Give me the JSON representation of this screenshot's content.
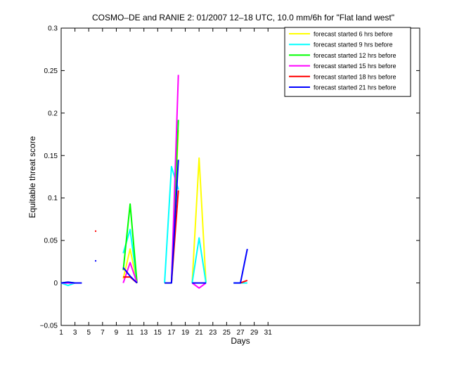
{
  "chart_data": {
    "type": "line",
    "title": "COSMO–DE and RANIE 2: 01/2007 12–18 UTC, 10.0 mm/6h for \"Flat land west\"",
    "xlabel": "Days",
    "ylabel": "Equitable threat score",
    "xlim": [
      1,
      53
    ],
    "ylim": [
      -0.05,
      0.3
    ],
    "xticks": [
      1,
      3,
      5,
      7,
      9,
      11,
      13,
      15,
      17,
      19,
      21,
      23,
      25,
      27,
      29,
      31
    ],
    "yticks": [
      -0.05,
      0,
      0.05,
      0.1,
      0.15,
      0.2,
      0.25,
      0.3
    ],
    "ytick_labels": [
      "−0.05",
      "0",
      "0.05",
      "0.1",
      "0.15",
      "0.2",
      "0.25",
      "0.3"
    ],
    "grid": false,
    "legend_position": "top-right",
    "series": [
      {
        "name": "forecast started 6 hrs before",
        "color": "#ffff00",
        "segments": [
          [
            [
              1,
              0
            ],
            [
              2,
              0
            ],
            [
              3,
              0
            ]
          ],
          [
            [
              10,
              0.005
            ],
            [
              11,
              0.04
            ],
            [
              12,
              0
            ]
          ],
          [
            [
              16,
              0
            ],
            [
              17,
              0
            ],
            [
              18,
              0.18
            ]
          ],
          [
            [
              20,
              0
            ],
            [
              21,
              0.147
            ],
            [
              22,
              0
            ]
          ]
        ]
      },
      {
        "name": "forecast started 9 hrs before",
        "color": "#00ffff",
        "segments": [
          [
            [
              1,
              0
            ],
            [
              2,
              -0.003
            ],
            [
              3,
              0
            ]
          ],
          [
            [
              10,
              0.035
            ],
            [
              11,
              0.063
            ],
            [
              12,
              0
            ]
          ],
          [
            [
              16,
              0
            ],
            [
              17,
              0.137
            ],
            [
              18,
              0.11
            ]
          ],
          [
            [
              20,
              0
            ],
            [
              21,
              0.053
            ],
            [
              22,
              0
            ]
          ],
          [
            [
              26,
              0
            ],
            [
              27,
              0
            ],
            [
              28,
              0
            ]
          ]
        ]
      },
      {
        "name": "forecast started 12 hrs before",
        "color": "#00ff00",
        "segments": [
          [
            [
              1,
              0
            ],
            [
              2,
              0.001
            ],
            [
              3,
              0
            ]
          ],
          [
            [
              10,
              0.015
            ],
            [
              11,
              0.093
            ],
            [
              12,
              0
            ]
          ],
          [
            [
              17,
              0
            ],
            [
              18,
              0.192
            ]
          ]
        ]
      },
      {
        "name": "forecast started 15 hrs before",
        "color": "#ff00ff",
        "segments": [
          [
            [
              1,
              0
            ],
            [
              2,
              0
            ],
            [
              3,
              0
            ]
          ],
          [
            [
              10,
              0
            ],
            [
              11,
              0.024
            ],
            [
              12,
              0
            ]
          ],
          [
            [
              17,
              0
            ],
            [
              18,
              0.245
            ]
          ],
          [
            [
              20,
              0
            ],
            [
              21,
              -0.006
            ],
            [
              22,
              0
            ]
          ]
        ]
      },
      {
        "name": "forecast started 18 hrs before",
        "color": "#ff0000",
        "segments": [
          [
            [
              6,
              0.061
            ]
          ],
          [
            [
              10,
              0.007
            ],
            [
              11,
              0.007
            ],
            [
              12,
              0
            ]
          ],
          [
            [
              17,
              0
            ],
            [
              18,
              0.109
            ]
          ],
          [
            [
              27,
              0
            ],
            [
              28,
              0.003
            ]
          ]
        ]
      },
      {
        "name": "forecast started 21 hrs before",
        "color": "#0000ff",
        "segments": [
          [
            [
              1,
              0
            ],
            [
              2,
              0.001
            ],
            [
              3,
              0
            ],
            [
              4,
              0
            ]
          ],
          [
            [
              6,
              0.026
            ]
          ],
          [
            [
              10,
              0.018
            ],
            [
              11,
              0.008
            ],
            [
              12,
              0
            ]
          ],
          [
            [
              16,
              0
            ],
            [
              17,
              0
            ],
            [
              18,
              0.145
            ]
          ],
          [
            [
              20,
              0
            ],
            [
              21,
              0
            ],
            [
              22,
              0
            ]
          ],
          [
            [
              26,
              0
            ],
            [
              27,
              0
            ],
            [
              28,
              0.04
            ]
          ]
        ]
      }
    ]
  }
}
